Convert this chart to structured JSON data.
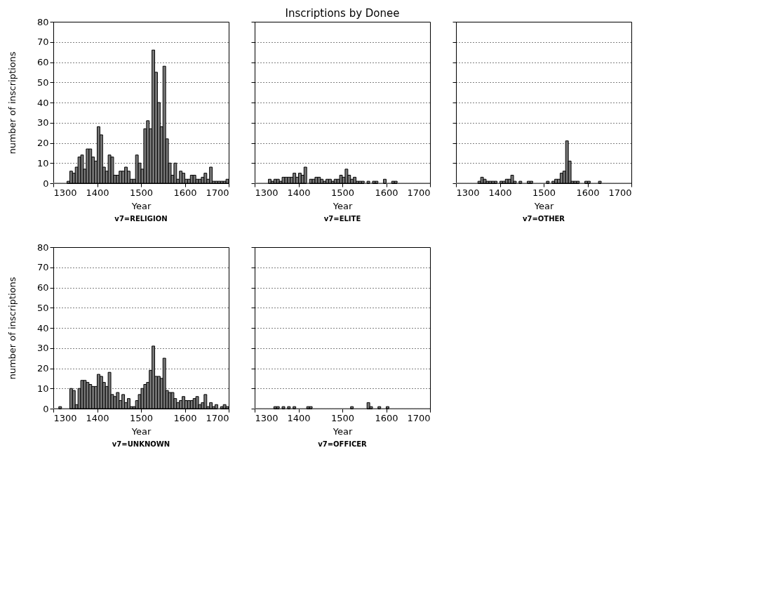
{
  "chart_data": [
    {
      "type": "histogram",
      "xlabel": "Year",
      "ylabel": "number of inscriptions",
      "annotations": [
        "v7=RELIGION"
      ],
      "color": "#777777",
      "bins": [
        1300,
        1306.25,
        1312.5,
        1318.75,
        1325,
        1331.25,
        1337.5,
        1343.75,
        1350,
        1356.25,
        1362.5,
        1368.75,
        1375,
        1381.25,
        1387.5,
        1393.75,
        1400,
        1406.25,
        1412.5,
        1418.75,
        1425,
        1431.25,
        1437.5,
        1443.75,
        1450,
        1456.25,
        1462.5,
        1468.75,
        1475,
        1481.25,
        1487.5,
        1493.75,
        1500,
        1506.25,
        1512.5,
        1518.75,
        1525,
        1531.25,
        1537.5,
        1543.75,
        1550,
        1556.25,
        1562.5,
        1568.75,
        1575,
        1581.25,
        1587.5,
        1593.75,
        1600,
        1606.25,
        1612.5,
        1618.75,
        1625,
        1631.25,
        1637.5,
        1643.75,
        1650,
        1656.25,
        1662.5,
        1668.75,
        1675,
        1681.25,
        1687.5,
        1693.75,
        1700
      ],
      "values": [
        0,
        0,
        0,
        0,
        0,
        1,
        6,
        5,
        8,
        13,
        14,
        7,
        17,
        17,
        13,
        11,
        28,
        24,
        8,
        6,
        14,
        13,
        4,
        4,
        6,
        6,
        8,
        6,
        2,
        2,
        14,
        10,
        7,
        27,
        31,
        27,
        66,
        55,
        40,
        28,
        58,
        22,
        10,
        4,
        10,
        2,
        6,
        5,
        2,
        2,
        4,
        4,
        2,
        2,
        3,
        5,
        2,
        8,
        1,
        1,
        1,
        1,
        1,
        2
      ],
      "xlim": [
        1300,
        1700
      ],
      "xticks": [
        1300,
        1400,
        1500,
        1600,
        1700
      ],
      "ylim": [
        0,
        80
      ],
      "yticks": [
        0,
        10,
        20,
        30,
        40,
        50,
        60,
        70,
        80
      ],
      "grid": "y"
    },
    {
      "type": "histogram",
      "title": "Inscriptions by Donee",
      "xlabel": "Year",
      "annotations": [
        "v7=ELITE"
      ],
      "color": "#777777",
      "bins": [
        1300,
        1306.25,
        1312.5,
        1318.75,
        1325,
        1331.25,
        1337.5,
        1343.75,
        1350,
        1356.25,
        1362.5,
        1368.75,
        1375,
        1381.25,
        1387.5,
        1393.75,
        1400,
        1406.25,
        1412.5,
        1418.75,
        1425,
        1431.25,
        1437.5,
        1443.75,
        1450,
        1456.25,
        1462.5,
        1468.75,
        1475,
        1481.25,
        1487.5,
        1493.75,
        1500,
        1506.25,
        1512.5,
        1518.75,
        1525,
        1531.25,
        1537.5,
        1543.75,
        1550,
        1556.25,
        1562.5,
        1568.75,
        1575,
        1581.25,
        1587.5,
        1593.75,
        1600,
        1606.25,
        1612.5,
        1618.75,
        1625,
        1631.25,
        1637.5,
        1643.75,
        1650,
        1656.25,
        1662.5,
        1668.75,
        1675,
        1681.25,
        1687.5,
        1693.75,
        1700
      ],
      "values": [
        0,
        0,
        0,
        0,
        0,
        2,
        1,
        2,
        2,
        1,
        3,
        3,
        3,
        3,
        5,
        3,
        5,
        4,
        8,
        0,
        2,
        2,
        3,
        3,
        2,
        1,
        2,
        2,
        1,
        2,
        2,
        4,
        3,
        7,
        4,
        2,
        3,
        1,
        1,
        1,
        0,
        1,
        0,
        1,
        1,
        0,
        0,
        2,
        0,
        0,
        1,
        1,
        0,
        0,
        0,
        0,
        0,
        0,
        0,
        0,
        0,
        0,
        0,
        0
      ],
      "xlim": [
        1300,
        1700
      ],
      "xticks": [
        1300,
        1400,
        1500,
        1600,
        1700
      ],
      "ylim": [
        0,
        80
      ],
      "yticks": [
        0,
        10,
        20,
        30,
        40,
        50,
        60,
        70,
        80
      ],
      "grid": "y",
      "tick_labels": "x"
    },
    {
      "type": "histogram",
      "xlabel": "Year",
      "annotations": [
        "v7=OTHER"
      ],
      "color": "#777777",
      "bins": [
        1300,
        1306.25,
        1312.5,
        1318.75,
        1325,
        1331.25,
        1337.5,
        1343.75,
        1350,
        1356.25,
        1362.5,
        1368.75,
        1375,
        1381.25,
        1387.5,
        1393.75,
        1400,
        1406.25,
        1412.5,
        1418.75,
        1425,
        1431.25,
        1437.5,
        1443.75,
        1450,
        1456.25,
        1462.5,
        1468.75,
        1475,
        1481.25,
        1487.5,
        1493.75,
        1500,
        1506.25,
        1512.5,
        1518.75,
        1525,
        1531.25,
        1537.5,
        1543.75,
        1550,
        1556.25,
        1562.5,
        1568.75,
        1575,
        1581.25,
        1587.5,
        1593.75,
        1600,
        1606.25,
        1612.5,
        1618.75,
        1625,
        1631.25,
        1637.5,
        1643.75,
        1650,
        1656.25,
        1662.5,
        1668.75,
        1675,
        1681.25,
        1687.5,
        1693.75,
        1700
      ],
      "values": [
        0,
        0,
        0,
        0,
        0,
        0,
        0,
        0,
        1,
        3,
        2,
        1,
        1,
        1,
        1,
        0,
        1,
        1,
        2,
        2,
        4,
        1,
        0,
        1,
        0,
        0,
        1,
        1,
        0,
        0,
        0,
        0,
        0,
        1,
        0,
        1,
        2,
        2,
        5,
        6,
        21,
        11,
        1,
        1,
        1,
        0,
        0,
        1,
        1,
        0,
        0,
        0,
        1,
        0,
        0,
        0,
        0,
        0,
        0,
        0,
        0,
        0,
        0,
        0
      ],
      "xlim": [
        1300,
        1700
      ],
      "xticks": [
        1300,
        1400,
        1500,
        1600,
        1700
      ],
      "ylim": [
        0,
        80
      ],
      "yticks": [
        0,
        10,
        20,
        30,
        40,
        50,
        60,
        70,
        80
      ],
      "grid": "y",
      "tick_labels": "x"
    },
    {
      "type": "histogram",
      "xlabel": "Year",
      "ylabel": "number of inscriptions",
      "annotations": [
        "v7=UNKNOWN"
      ],
      "color": "#777777",
      "bins": [
        1300,
        1306.25,
        1312.5,
        1318.75,
        1325,
        1331.25,
        1337.5,
        1343.75,
        1350,
        1356.25,
        1362.5,
        1368.75,
        1375,
        1381.25,
        1387.5,
        1393.75,
        1400,
        1406.25,
        1412.5,
        1418.75,
        1425,
        1431.25,
        1437.5,
        1443.75,
        1450,
        1456.25,
        1462.5,
        1468.75,
        1475,
        1481.25,
        1487.5,
        1493.75,
        1500,
        1506.25,
        1512.5,
        1518.75,
        1525,
        1531.25,
        1537.5,
        1543.75,
        1550,
        1556.25,
        1562.5,
        1568.75,
        1575,
        1581.25,
        1587.5,
        1593.75,
        1600,
        1606.25,
        1612.5,
        1618.75,
        1625,
        1631.25,
        1637.5,
        1643.75,
        1650,
        1656.25,
        1662.5,
        1668.75,
        1675,
        1681.25,
        1687.5,
        1693.75,
        1700
      ],
      "values": [
        0,
        0,
        1,
        0,
        0,
        0,
        10,
        9,
        2,
        10,
        14,
        14,
        13,
        12,
        11,
        11,
        17,
        16,
        13,
        11,
        18,
        7,
        6,
        8,
        4,
        7,
        3,
        5,
        1,
        1,
        4,
        7,
        10,
        12,
        13,
        19,
        31,
        16,
        16,
        15,
        25,
        9,
        8,
        8,
        5,
        3,
        4,
        6,
        4,
        4,
        4,
        5,
        6,
        2,
        3,
        7,
        1,
        3,
        1,
        2,
        0,
        1,
        2,
        1
      ],
      "xlim": [
        1300,
        1700
      ],
      "xticks": [
        1300,
        1400,
        1500,
        1600,
        1700
      ],
      "ylim": [
        0,
        80
      ],
      "yticks": [
        0,
        10,
        20,
        30,
        40,
        50,
        60,
        70,
        80
      ],
      "grid": "y"
    },
    {
      "type": "histogram",
      "xlabel": "Year",
      "annotations": [
        "v7=OFFICER"
      ],
      "color": "#777777",
      "bins": [
        1300,
        1306.25,
        1312.5,
        1318.75,
        1325,
        1331.25,
        1337.5,
        1343.75,
        1350,
        1356.25,
        1362.5,
        1368.75,
        1375,
        1381.25,
        1387.5,
        1393.75,
        1400,
        1406.25,
        1412.5,
        1418.75,
        1425,
        1431.25,
        1437.5,
        1443.75,
        1450,
        1456.25,
        1462.5,
        1468.75,
        1475,
        1481.25,
        1487.5,
        1493.75,
        1500,
        1506.25,
        1512.5,
        1518.75,
        1525,
        1531.25,
        1537.5,
        1543.75,
        1550,
        1556.25,
        1562.5,
        1568.75,
        1575,
        1581.25,
        1587.5,
        1593.75,
        1600,
        1606.25,
        1612.5,
        1618.75,
        1625,
        1631.25,
        1637.5,
        1643.75,
        1650,
        1656.25,
        1662.5,
        1668.75,
        1675,
        1681.25,
        1687.5,
        1693.75,
        1700
      ],
      "values": [
        0,
        0,
        0,
        0,
        0,
        0,
        0,
        1,
        1,
        0,
        1,
        0,
        1,
        0,
        1,
        0,
        0,
        0,
        0,
        1,
        1,
        0,
        0,
        0,
        0,
        0,
        0,
        0,
        0,
        0,
        0,
        0,
        0,
        0,
        0,
        1,
        0,
        0,
        0,
        0,
        0,
        3,
        1,
        0,
        0,
        1,
        0,
        0,
        1,
        0,
        0,
        0,
        0,
        0,
        0,
        0,
        0,
        0,
        0,
        0,
        0,
        0,
        0,
        0
      ],
      "xlim": [
        1300,
        1700
      ],
      "xticks": [
        1300,
        1400,
        1500,
        1600,
        1700
      ],
      "ylim": [
        0,
        80
      ],
      "yticks": [
        0,
        10,
        20,
        30,
        40,
        50,
        60,
        70,
        80
      ],
      "grid": "y",
      "tick_labels": "x"
    }
  ]
}
